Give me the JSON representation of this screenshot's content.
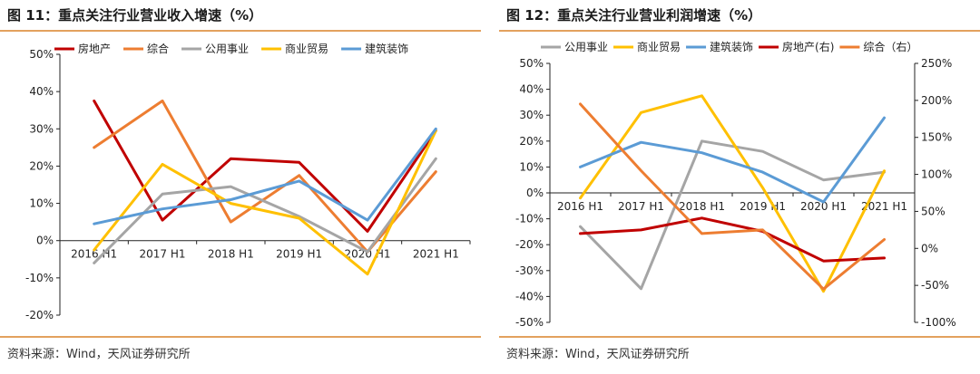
{
  "left": {
    "title": "图 11：重点关注行业营业收入增速（%）",
    "source": "资料来源：Wind，天风证券研究所"
  },
  "right": {
    "title": "图 12：重点关注行业营业利润增速（%）",
    "source": "资料来源：Wind，天风证券研究所"
  },
  "chart_data": [
    {
      "type": "line",
      "title": "图 11：重点关注行业营业收入增速（%）",
      "categories": [
        "2016 H1",
        "2017 H1",
        "2018 H1",
        "2019 H1",
        "2020 H1",
        "2021 H1"
      ],
      "y_ticks": [
        "50%",
        "40%",
        "30%",
        "20%",
        "10%",
        "0%",
        "-10%",
        "-20%"
      ],
      "ylim": [
        -20,
        50
      ],
      "legend_position": "top",
      "grid": false,
      "series": [
        {
          "name": "房地产",
          "color": "#c00000",
          "values": [
            37.5,
            5.5,
            22,
            21,
            2.5,
            29.5
          ]
        },
        {
          "name": "综合",
          "color": "#ed7d31",
          "values": [
            25,
            37.5,
            5,
            17.5,
            -3,
            18.5
          ]
        },
        {
          "name": "公用事业",
          "color": "#a5a5a5",
          "values": [
            -6,
            12.5,
            14.5,
            6.5,
            -3,
            22
          ]
        },
        {
          "name": "商业贸易",
          "color": "#ffc000",
          "values": [
            -2.5,
            20.5,
            10,
            6,
            -9,
            29.5
          ]
        },
        {
          "name": "建筑装饰",
          "color": "#5b9bd5",
          "values": [
            4.5,
            8.5,
            11,
            16,
            5.5,
            30
          ]
        }
      ]
    },
    {
      "type": "line",
      "title": "图 12：重点关注行业营业利润增速（%）",
      "categories": [
        "2016 H1",
        "2017 H1",
        "2018 H1",
        "2019 H1",
        "2020 H1",
        "2021 H1"
      ],
      "y_ticks": [
        "50%",
        "40%",
        "30%",
        "20%",
        "10%",
        "0%",
        "-10%",
        "-20%",
        "-30%",
        "-40%",
        "-50%"
      ],
      "y2_ticks": [
        "250%",
        "200%",
        "150%",
        "100%",
        "50%",
        "0%",
        "-50%",
        "-100%"
      ],
      "ylim": [
        -50,
        50
      ],
      "y2lim": [
        -100,
        250
      ],
      "legend_position": "top",
      "grid": false,
      "series": [
        {
          "name": "公用事业",
          "color": "#a5a5a5",
          "axis": "left",
          "values": [
            -13,
            -37,
            20,
            16,
            5,
            8
          ]
        },
        {
          "name": "商业贸易",
          "color": "#ffc000",
          "axis": "left",
          "values": [
            -2,
            31,
            37.5,
            2,
            -38,
            8.5
          ]
        },
        {
          "name": "建筑装饰",
          "color": "#5b9bd5",
          "axis": "left",
          "values": [
            10,
            19.5,
            15.5,
            8,
            -3.5,
            29
          ]
        },
        {
          "name": "房地产(右)",
          "color": "#c00000",
          "axis": "right",
          "values": [
            20,
            25,
            41,
            23,
            -17,
            -13
          ]
        },
        {
          "name": "综合（右）",
          "color": "#ed7d31",
          "axis": "right",
          "values": [
            195,
            105,
            20,
            25,
            -55,
            12
          ]
        }
      ]
    }
  ]
}
